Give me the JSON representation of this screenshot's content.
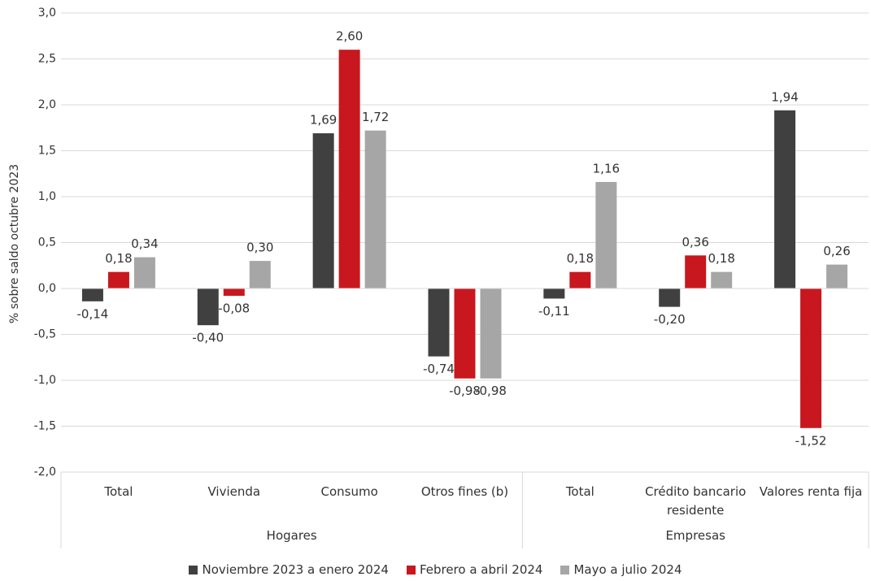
{
  "chart_data": {
    "type": "bar",
    "y_label": "% sobre saldo octubre 2023",
    "groups": [
      {
        "name": "Hogares",
        "categories": [
          "Total",
          "Vivienda",
          "Consumo",
          "Otros fines (b)"
        ]
      },
      {
        "name": "Empresas",
        "categories": [
          "Total",
          "Crédito bancario residente",
          "Valores renta fija"
        ]
      }
    ],
    "series": [
      {
        "name": "Noviembre 2023 a enero 2024",
        "color": "#404040",
        "values": [
          -0.14,
          -0.4,
          1.69,
          -0.74,
          -0.11,
          -0.2,
          1.94
        ],
        "value_labels": [
          "-0,14",
          "-0,40",
          "1,69",
          "-0,74",
          "-0,11",
          "-0,20",
          "1,94"
        ]
      },
      {
        "name": "Febrero a abril 2024",
        "color": "#c8171e",
        "values": [
          0.18,
          -0.08,
          2.6,
          -0.98,
          0.18,
          0.36,
          -1.52
        ],
        "value_labels": [
          "0,18",
          "-0,08",
          "2,60",
          "-0,98",
          "0,18",
          "0,36",
          "-1,52"
        ]
      },
      {
        "name": "Mayo a julio 2024",
        "color": "#a6a6a6",
        "values": [
          0.34,
          0.3,
          1.72,
          -0.98,
          1.16,
          0.18,
          0.26
        ],
        "value_labels": [
          "0,34",
          "0,30",
          "1,72",
          "-0,98",
          "1,16",
          "0,18",
          "0,26"
        ]
      }
    ],
    "ylim": [
      -2.0,
      3.0
    ],
    "yticks": [
      {
        "value": -2.0,
        "label": "-2,0"
      },
      {
        "value": -1.5,
        "label": "-1,5"
      },
      {
        "value": -1.0,
        "label": "-1,0"
      },
      {
        "value": -0.5,
        "label": "-0,5"
      },
      {
        "value": 0.0,
        "label": "0,0"
      },
      {
        "value": 0.5,
        "label": "0,5"
      },
      {
        "value": 1.0,
        "label": "1,0"
      },
      {
        "value": 1.5,
        "label": "1,5"
      },
      {
        "value": 2.0,
        "label": "2,0"
      },
      {
        "value": 2.5,
        "label": "2,5"
      },
      {
        "value": 3.0,
        "label": "3,0"
      }
    ],
    "grid": true,
    "legend": "bottom"
  }
}
